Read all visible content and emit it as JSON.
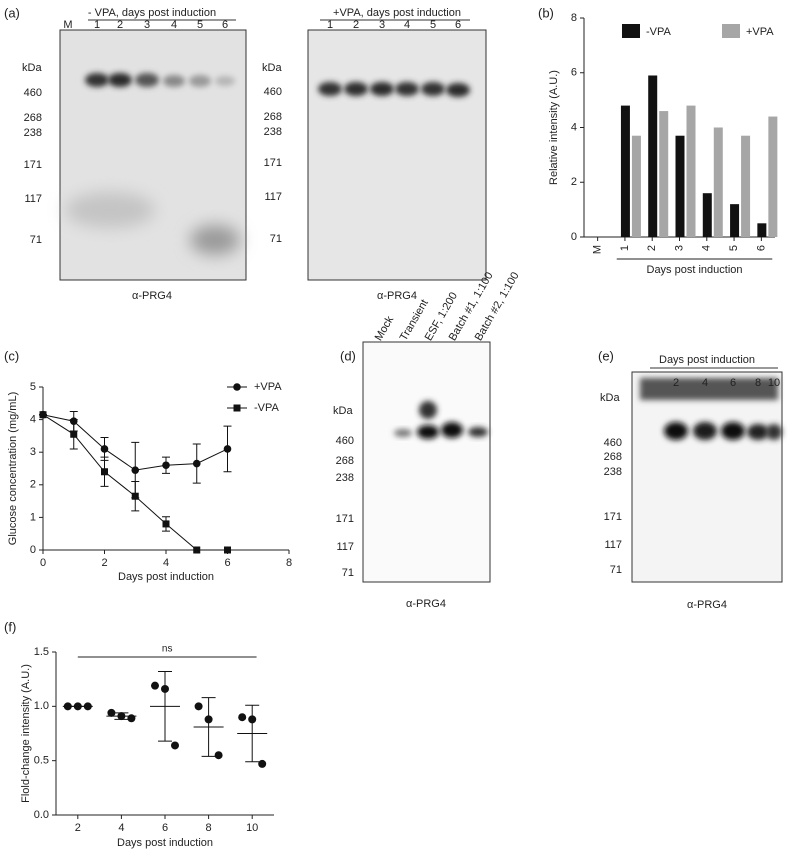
{
  "panel_labels": [
    "(a)",
    "(b)",
    "(c)",
    "(d)",
    "(e)",
    "(f)"
  ],
  "blots": {
    "a_minus": {
      "header": "- VPA, days post induction",
      "lanes": [
        "M",
        "1",
        "2",
        "3",
        "4",
        "5",
        "6"
      ],
      "kda": "kDa",
      "markers": [
        "460",
        "268",
        "238",
        "171",
        "117",
        "71"
      ],
      "caption": "α-PRG4"
    },
    "a_plus": {
      "header": "+VPA, days post induction",
      "lanes": [
        "1",
        "2",
        "3",
        "4",
        "5",
        "6"
      ],
      "kda": "kDa",
      "markers": [
        "460",
        "268",
        "238",
        "171",
        "117",
        "71"
      ],
      "caption": "α-PRG4"
    },
    "d": {
      "lanes": [
        "Mock",
        "Transient",
        "ESF, 1:200",
        "Batch #1, 1:100",
        "Batch #2, 1:100"
      ],
      "kda": "kDa",
      "markers": [
        "460",
        "268",
        "238",
        "171",
        "117",
        "71"
      ],
      "caption": "α-PRG4"
    },
    "e": {
      "header": "Days post induction",
      "lanes": [
        "2",
        "4",
        "6",
        "8",
        "10"
      ],
      "kda": "kDa",
      "markers": [
        "460",
        "268",
        "238",
        "171",
        "117",
        "71"
      ],
      "caption": "α-PRG4"
    }
  },
  "chart_data": [
    {
      "type": "bar",
      "categories": [
        "M",
        "1",
        "2",
        "3",
        "4",
        "5",
        "6"
      ],
      "series": [
        {
          "name": "-VPA",
          "color": "#111111",
          "values": [
            null,
            4.8,
            5.9,
            3.7,
            1.6,
            1.2,
            0.5
          ]
        },
        {
          "name": "+VPA",
          "color": "#a6a6a6",
          "values": [
            null,
            3.7,
            4.6,
            4.8,
            4.0,
            3.7,
            4.4
          ]
        }
      ],
      "ylabel": "Relative intensity (A.U.)",
      "xlabel": "Days post induction",
      "ylim": [
        0,
        8
      ],
      "yticks": [
        0,
        2,
        4,
        6,
        8
      ]
    },
    {
      "type": "line",
      "x": [
        0,
        1,
        2,
        3,
        4,
        5,
        6
      ],
      "series": [
        {
          "name": "+VPA",
          "color": "#111111",
          "marker": "circle",
          "values": [
            4.15,
            3.95,
            3.1,
            2.45,
            2.6,
            2.65,
            3.1
          ],
          "errors": [
            0,
            0.3,
            0.35,
            0.85,
            0.25,
            0.6,
            0.7
          ]
        },
        {
          "name": "-VPA",
          "color": "#111111",
          "marker": "square",
          "values": [
            4.15,
            3.55,
            2.4,
            1.65,
            0.8,
            0,
            0
          ],
          "errors": [
            0,
            0.45,
            0.45,
            0.45,
            0.22,
            0,
            0
          ]
        }
      ],
      "ylabel": "Glucose concentration (mg/mL)",
      "xlabel": "Days post induction",
      "xlim": [
        0,
        8
      ],
      "xticks": [
        0,
        2,
        4,
        6,
        8
      ],
      "ylim": [
        0,
        5
      ],
      "yticks": [
        0,
        1,
        2,
        3,
        4,
        5
      ]
    },
    {
      "type": "scatter",
      "categories": [
        "2",
        "4",
        "6",
        "8",
        "10"
      ],
      "points": [
        [
          1.0,
          1.0,
          1.0
        ],
        [
          0.94,
          0.91,
          0.89
        ],
        [
          1.19,
          1.16,
          0.64
        ],
        [
          1.0,
          0.88,
          0.55
        ],
        [
          0.9,
          0.88,
          0.47
        ]
      ],
      "mean": [
        1.0,
        0.91,
        1.0,
        0.81,
        0.75
      ],
      "sd": [
        0,
        0.03,
        0.32,
        0.27,
        0.26
      ],
      "color": "#111111",
      "annotation": "ns",
      "ylabel": "Flold-change intensity  (A.U.)",
      "xlabel": "Days post induction",
      "ylim": [
        0,
        1.5
      ],
      "yticks": [
        {
          "value": 0,
          "label": "0.0"
        },
        {
          "value": 0.5,
          "label": "0.5"
        },
        {
          "value": 1,
          "label": "1.0"
        },
        {
          "value": 1.5,
          "label": "1.5"
        }
      ]
    }
  ]
}
